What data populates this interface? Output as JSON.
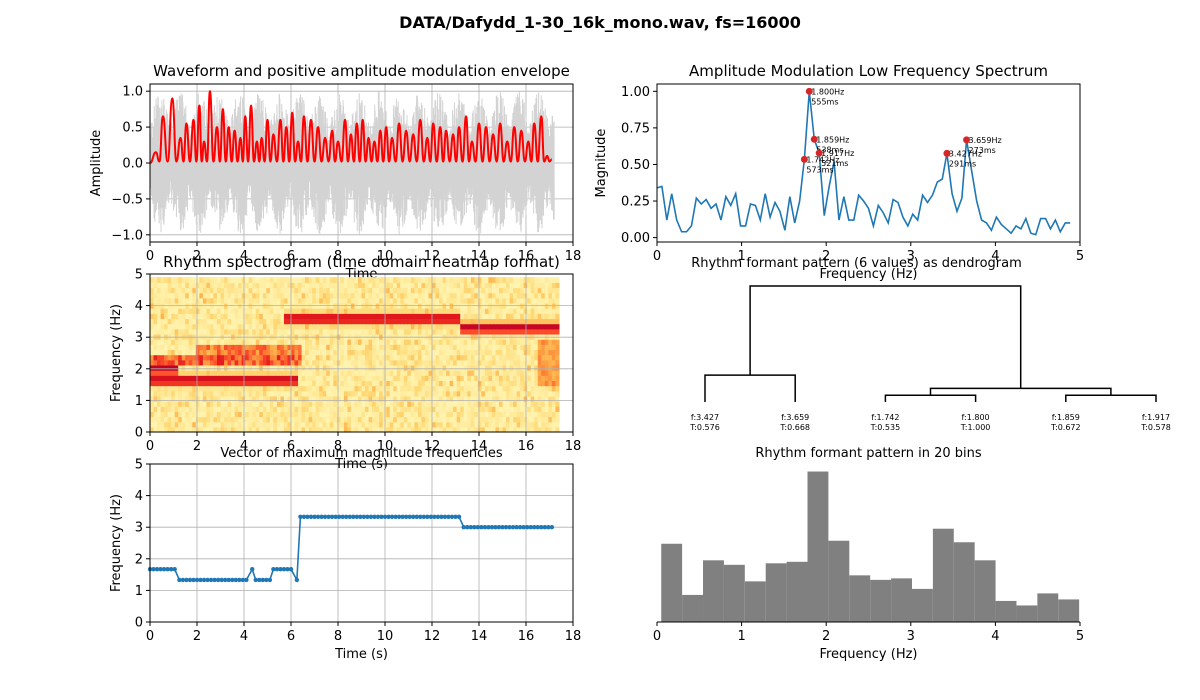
{
  "figure": {
    "suptitle": "DATA/Dafydd_1-30_16k_mono.wav, fs=16000"
  },
  "chart_data": [
    {
      "id": "waveform",
      "type": "line",
      "title": "Waveform and positive amplitude modulation envelope",
      "xlabel": "Time",
      "ylabel": "Amplitude",
      "xlim": [
        0,
        18
      ],
      "ylim": [
        -1.1,
        1.1
      ],
      "xticks": [
        0,
        2,
        4,
        6,
        8,
        10,
        12,
        14,
        16,
        18
      ],
      "yticks": [
        -1.0,
        -0.5,
        0.0,
        0.5,
        1.0
      ],
      "grid": true,
      "colors": {
        "waveform": "#d3d3d3",
        "envelope": "#ff0000"
      },
      "duration_s": 17.2,
      "envelope_peaks": [
        [
          0.25,
          0.15
        ],
        [
          0.55,
          0.65
        ],
        [
          0.95,
          0.9
        ],
        [
          1.3,
          0.35
        ],
        [
          1.55,
          0.55
        ],
        [
          1.85,
          0.6
        ],
        [
          2.1,
          0.8
        ],
        [
          2.3,
          0.3
        ],
        [
          2.55,
          1.0
        ],
        [
          2.85,
          0.5
        ],
        [
          3.1,
          0.75
        ],
        [
          3.35,
          0.5
        ],
        [
          3.6,
          0.45
        ],
        [
          3.85,
          0.35
        ],
        [
          4.05,
          0.65
        ],
        [
          4.3,
          0.8
        ],
        [
          4.55,
          0.3
        ],
        [
          4.75,
          0.35
        ],
        [
          5.0,
          0.6
        ],
        [
          5.25,
          0.4
        ],
        [
          5.55,
          0.6
        ],
        [
          5.8,
          0.5
        ],
        [
          6.05,
          0.7
        ],
        [
          6.3,
          0.3
        ],
        [
          6.55,
          0.65
        ],
        [
          6.85,
          0.6
        ],
        [
          7.15,
          0.5
        ],
        [
          7.45,
          0.35
        ],
        [
          7.75,
          0.45
        ],
        [
          8.0,
          0.3
        ],
        [
          8.3,
          0.6
        ],
        [
          8.55,
          0.4
        ],
        [
          8.8,
          0.55
        ],
        [
          9.05,
          0.6
        ],
        [
          9.3,
          0.35
        ],
        [
          9.55,
          0.3
        ],
        [
          9.8,
          0.45
        ],
        [
          10.05,
          0.5
        ],
        [
          10.3,
          0.35
        ],
        [
          10.6,
          0.55
        ],
        [
          10.9,
          0.45
        ],
        [
          11.2,
          0.4
        ],
        [
          11.5,
          0.6
        ],
        [
          11.8,
          0.35
        ],
        [
          12.05,
          0.55
        ],
        [
          12.35,
          0.5
        ],
        [
          12.6,
          0.45
        ],
        [
          12.9,
          0.4
        ],
        [
          13.15,
          0.5
        ],
        [
          13.45,
          0.65
        ],
        [
          13.7,
          0.3
        ],
        [
          14.0,
          0.55
        ],
        [
          14.3,
          0.5
        ],
        [
          14.6,
          0.4
        ],
        [
          14.9,
          0.55
        ],
        [
          15.2,
          0.3
        ],
        [
          15.5,
          0.5
        ],
        [
          15.8,
          0.45
        ],
        [
          16.1,
          0.3
        ],
        [
          16.35,
          0.55
        ],
        [
          16.65,
          0.65
        ],
        [
          16.9,
          0.1
        ],
        [
          17.1,
          0.05
        ]
      ]
    },
    {
      "id": "am_spectrum",
      "type": "line",
      "title": "Amplitude Modulation Low Frequency Spectrum",
      "xlabel": "Frequency (Hz)",
      "ylabel": "Magnitude",
      "xlim": [
        0,
        5
      ],
      "ylim": [
        -0.03,
        1.05
      ],
      "xticks": [
        0,
        1,
        2,
        3,
        4,
        5
      ],
      "yticks": [
        0.0,
        0.25,
        0.5,
        0.75,
        1.0
      ],
      "yticklabels": [
        "0.00",
        "0.25",
        "0.50",
        "0.75",
        "1.00"
      ],
      "grid": false,
      "colors": {
        "line": "#1f77b4",
        "peaks": "#d62728"
      },
      "x": [
        0.0,
        0.058,
        0.116,
        0.174,
        0.233,
        0.291,
        0.349,
        0.407,
        0.465,
        0.523,
        0.581,
        0.64,
        0.698,
        0.756,
        0.814,
        0.872,
        0.93,
        0.988,
        1.047,
        1.105,
        1.163,
        1.221,
        1.279,
        1.337,
        1.395,
        1.453,
        1.512,
        1.57,
        1.628,
        1.686,
        1.742,
        1.8,
        1.859,
        1.917,
        1.977,
        2.035,
        2.093,
        2.151,
        2.209,
        2.267,
        2.326,
        2.384,
        2.442,
        2.5,
        2.558,
        2.616,
        2.674,
        2.733,
        2.791,
        2.849,
        2.907,
        2.965,
        3.023,
        3.081,
        3.14,
        3.198,
        3.256,
        3.314,
        3.372,
        3.427,
        3.488,
        3.546,
        3.604,
        3.659,
        3.721,
        3.779,
        3.837,
        3.895,
        3.953,
        4.012,
        4.07,
        4.128,
        4.186,
        4.244,
        4.302,
        4.36,
        4.419,
        4.477,
        4.535,
        4.593,
        4.651,
        4.709,
        4.767,
        4.826,
        4.884
      ],
      "y": [
        0.34,
        0.35,
        0.12,
        0.3,
        0.12,
        0.04,
        0.04,
        0.08,
        0.27,
        0.23,
        0.26,
        0.2,
        0.23,
        0.12,
        0.28,
        0.22,
        0.3,
        0.08,
        0.08,
        0.23,
        0.22,
        0.12,
        0.3,
        0.14,
        0.24,
        0.18,
        0.05,
        0.28,
        0.1,
        0.25,
        0.535,
        1.0,
        0.672,
        0.578,
        0.15,
        0.35,
        0.52,
        0.12,
        0.28,
        0.12,
        0.12,
        0.29,
        0.25,
        0.2,
        0.08,
        0.22,
        0.17,
        0.1,
        0.26,
        0.24,
        0.14,
        0.08,
        0.16,
        0.12,
        0.29,
        0.24,
        0.29,
        0.38,
        0.4,
        0.576,
        0.3,
        0.18,
        0.27,
        0.668,
        0.45,
        0.25,
        0.12,
        0.1,
        0.05,
        0.14,
        0.09,
        0.06,
        0.03,
        0.08,
        0.06,
        0.13,
        0.03,
        0.02,
        0.13,
        0.13,
        0.06,
        0.12,
        0.04,
        0.1,
        0.1
      ],
      "peak_labels": [
        {
          "x": 1.8,
          "y": 1.0,
          "text1": "1.800Hz",
          "text2": "555ms"
        },
        {
          "x": 1.859,
          "y": 0.672,
          "text1": "1.859Hz",
          "text2": "538ms"
        },
        {
          "x": 1.917,
          "y": 0.578,
          "text1": "1.917Hz",
          "text2": "521ms"
        },
        {
          "x": 1.742,
          "y": 0.535,
          "text1": "1.742Hz",
          "text2": "573ms"
        },
        {
          "x": 3.659,
          "y": 0.668,
          "text1": "3.659Hz",
          "text2": "273ms"
        },
        {
          "x": 3.427,
          "y": 0.576,
          "text1": "3.427Hz",
          "text2": "291ms"
        }
      ]
    },
    {
      "id": "rhythm_spectrogram",
      "type": "heatmap",
      "title": "Rhythm spectrogram (time domain heatmap format)",
      "xlabel": "Time (s)",
      "ylabel": "Frequency (Hz)",
      "xlim": [
        0,
        18
      ],
      "ylim": [
        0,
        5
      ],
      "xticks": [
        0,
        2,
        4,
        6,
        8,
        10,
        12,
        14,
        16,
        18
      ],
      "yticks": [
        0,
        1,
        2,
        3,
        4,
        5
      ],
      "grid": true,
      "colormap": "YlOrRd",
      "time_extent": [
        0,
        17.4
      ],
      "freq_extent": [
        0,
        4.9
      ],
      "dominant_tracks": [
        {
          "t0": 0.0,
          "t1": 6.3,
          "f": 1.65
        },
        {
          "t0": 0.0,
          "t1": 1.2,
          "f": 2.0
        },
        {
          "t0": 5.7,
          "t1": 13.2,
          "f": 3.6
        },
        {
          "t0": 13.2,
          "t1": 17.4,
          "f": 3.3
        }
      ]
    },
    {
      "id": "dendrogram",
      "type": "dendrogram",
      "title": "Rhythm formant pattern (6 values) as dendrogram",
      "colors": {
        "lines": "#000000"
      },
      "leaves": [
        {
          "f": "f:3.427",
          "t": "T:0.576"
        },
        {
          "f": "f:3.659",
          "t": "T:0.668"
        },
        {
          "f": "f:1.742",
          "t": "T:0.535"
        },
        {
          "f": "f:1.800",
          "t": "T:1.000"
        },
        {
          "f": "f:1.859",
          "t": "T:0.672"
        },
        {
          "f": "f:1.917",
          "t": "T:0.578"
        }
      ],
      "merges": [
        {
          "a": 0,
          "b": 1,
          "h": 0.232
        },
        {
          "a": 2,
          "b": 3,
          "h": 0.058
        },
        {
          "a": 4,
          "b": 5,
          "h": 0.058
        },
        {
          "a": 7,
          "b": 8,
          "h": 0.117
        },
        {
          "a": 6,
          "b": 9,
          "h": 1.0
        }
      ]
    },
    {
      "id": "max_freq_vector",
      "type": "line",
      "title": "Vector of maximum magnitude frequencies",
      "xlabel": "Time (s)",
      "ylabel": "Frequency (Hz)",
      "xlim": [
        0,
        18
      ],
      "ylim": [
        0,
        5
      ],
      "xticks": [
        0,
        2,
        4,
        6,
        8,
        10,
        12,
        14,
        16,
        18
      ],
      "yticks": [
        0,
        1,
        2,
        3,
        4,
        5
      ],
      "grid": true,
      "colors": {
        "line": "#1f77b4"
      },
      "segments": [
        {
          "t0": 0.0,
          "t1": 1.15,
          "f": 1.67
        },
        {
          "t0": 1.25,
          "t1": 4.2,
          "f": 1.33
        },
        {
          "t0": 4.35,
          "t1": 4.35,
          "f": 1.67
        },
        {
          "t0": 4.5,
          "t1": 5.1,
          "f": 1.33
        },
        {
          "t0": 5.25,
          "t1": 6.1,
          "f": 1.67
        },
        {
          "t0": 6.25,
          "t1": 6.25,
          "f": 1.33
        },
        {
          "t0": 6.4,
          "t1": 13.2,
          "f": 3.33
        },
        {
          "t0": 13.35,
          "t1": 17.2,
          "f": 3.0
        }
      ],
      "step_s": 0.15
    },
    {
      "id": "histogram",
      "type": "bar",
      "title": "Rhythm formant pattern in 20 bins",
      "xlabel": "Frequency (Hz)",
      "ylabel": "",
      "xlim": [
        0,
        5
      ],
      "xticks": [
        0,
        1,
        2,
        3,
        4,
        5
      ],
      "colors": {
        "bars": "#808080"
      },
      "bin_edges": [
        0.05,
        0.297,
        0.544,
        0.791,
        1.038,
        1.285,
        1.532,
        1.779,
        2.026,
        2.273,
        2.52,
        2.767,
        3.014,
        3.261,
        3.508,
        3.755,
        4.002,
        4.249,
        4.496,
        4.743,
        4.99
      ],
      "values": [
        0.52,
        0.18,
        0.41,
        0.38,
        0.27,
        0.39,
        0.4,
        1.0,
        0.54,
        0.31,
        0.28,
        0.29,
        0.22,
        0.62,
        0.53,
        0.41,
        0.14,
        0.11,
        0.19,
        0.15
      ]
    }
  ]
}
